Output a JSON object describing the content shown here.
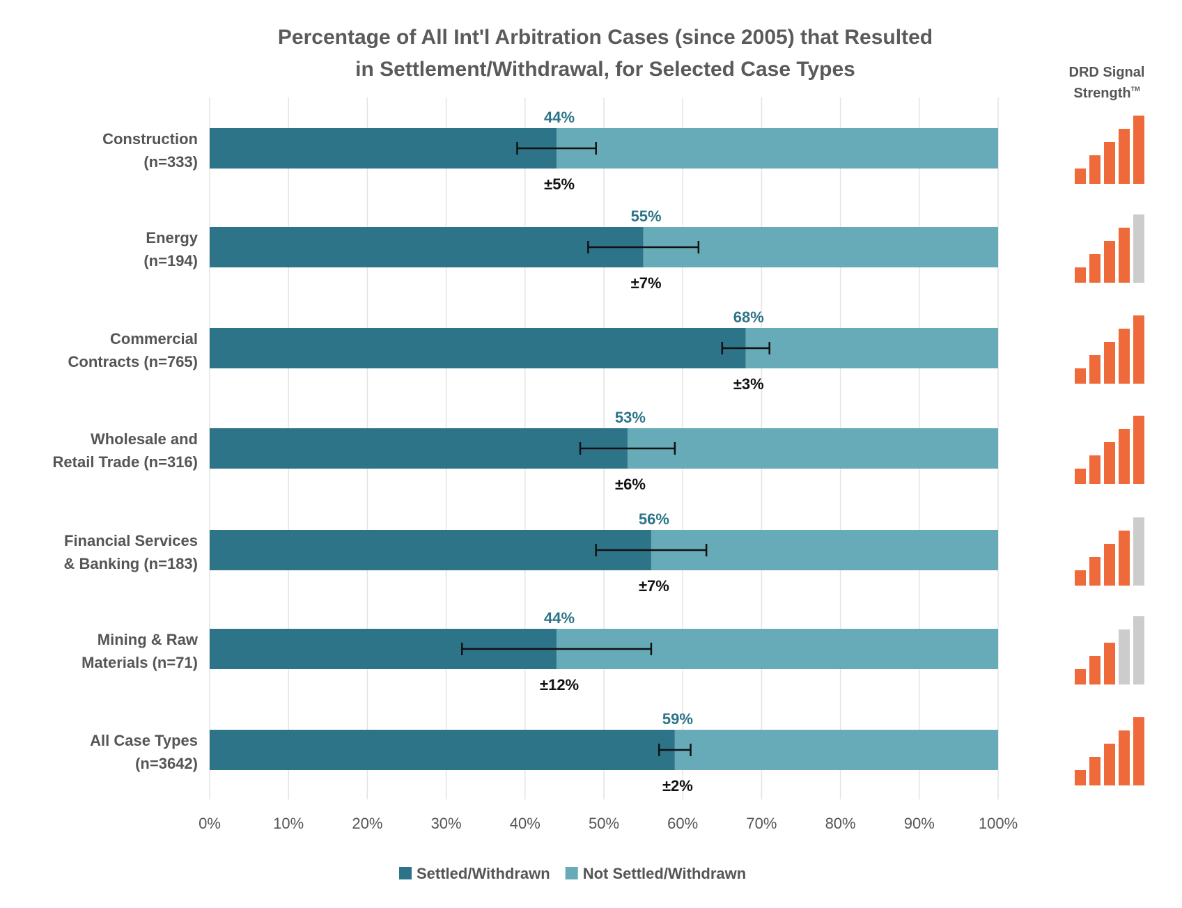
{
  "chart_data": {
    "type": "bar",
    "orientation": "horizontal",
    "stacked": true,
    "title_lines": [
      "Percentage of All Int'l Arbitration Cases (since 2005) that Resulted",
      "in Settlement/Withdrawal, for Selected Case Types"
    ],
    "categories": [
      [
        "Construction",
        "(n=333)"
      ],
      [
        "Energy",
        "(n=194)"
      ],
      [
        "Commercial",
        "Contracts (n=765)"
      ],
      [
        "Wholesale and",
        "Retail Trade (n=316)"
      ],
      [
        "Financial Services",
        "& Banking (n=183)"
      ],
      [
        "Mining & Raw",
        "Materials (n=71)"
      ],
      [
        "All Case Types",
        "(n=3642)"
      ]
    ],
    "series": [
      {
        "name": "Settled/Withdrawn",
        "color": "#2d7489",
        "values": [
          44,
          55,
          68,
          53,
          56,
          44,
          59
        ]
      },
      {
        "name": "Not Settled/Withdrawn",
        "color": "#67abb9",
        "values": [
          56,
          45,
          32,
          47,
          44,
          56,
          41
        ]
      }
    ],
    "value_labels": [
      "44%",
      "55%",
      "68%",
      "53%",
      "56%",
      "44%",
      "59%"
    ],
    "value_label_color": "#2d7489",
    "error_margins": [
      5,
      7,
      3,
      6,
      7,
      12,
      2
    ],
    "error_labels": [
      "±5%",
      "±7%",
      "±3%",
      "±6%",
      "±7%",
      "±12%",
      "±2%"
    ],
    "x_ticks": [
      "0%",
      "10%",
      "20%",
      "30%",
      "40%",
      "50%",
      "60%",
      "70%",
      "80%",
      "90%",
      "100%"
    ],
    "xlim": [
      0,
      100
    ],
    "grid": true,
    "legend_position": "bottom-center",
    "signal_strength": {
      "title_lines": [
        "DRD Signal",
        "Strength"
      ],
      "trademark": "TM",
      "max_level": 5,
      "levels": [
        5,
        4,
        5,
        5,
        4,
        3,
        5
      ],
      "active_color": "#ef6a3a",
      "inactive_color": "#cccccc"
    }
  }
}
